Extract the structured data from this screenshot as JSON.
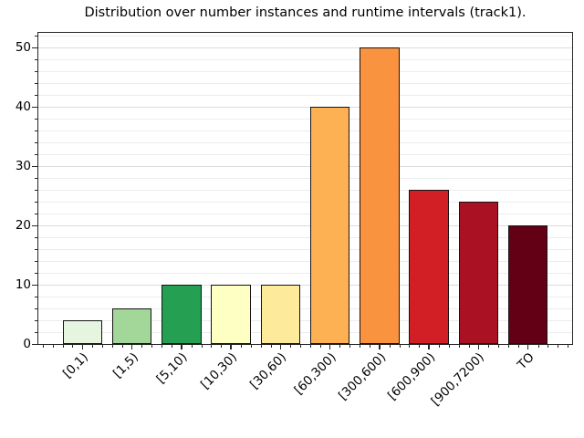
{
  "chart_data": {
    "type": "bar",
    "title": "Distribution over number instances and runtime intervals (track1).",
    "categories": [
      "[0,1)",
      "[1,5)",
      "[5,10)",
      "[10,30)",
      "[30,60)",
      "[60,300)",
      "[300,600)",
      "[600,900)",
      "[900,7200)",
      "TO"
    ],
    "values": [
      4,
      6,
      10,
      10,
      10,
      40,
      50,
      26,
      24,
      20
    ],
    "bar_colors": [
      "#e6f5e0",
      "#a3d79a",
      "#25a053",
      "#feffc3",
      "#fdea9b",
      "#fdb152",
      "#fa9340",
      "#d21e25",
      "#aa1122",
      "#630016"
    ],
    "xlabel": "",
    "ylabel": "",
    "ylim": [
      0,
      52.5
    ],
    "yticks": [
      0,
      10,
      20,
      30,
      40,
      50
    ],
    "minor_grid_step": 2,
    "major_grid_step": 10,
    "legend": "none",
    "grid": "horizontal",
    "bar_edge_color": "#141414",
    "background_color": "#ffffff"
  }
}
